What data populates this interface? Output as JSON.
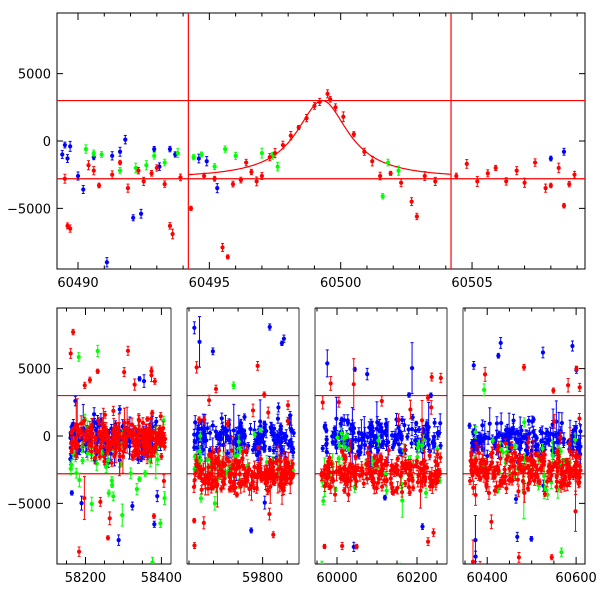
{
  "chart_data": [
    {
      "type": "scatter",
      "panel": "top",
      "title": "",
      "xlabel": "",
      "ylabel": "",
      "xlim": [
        60489.2,
        60509.3
      ],
      "ylim": [
        -9500,
        9500
      ],
      "x_ticks": [
        60490,
        60495,
        60500,
        60505
      ],
      "x_tick_labels": [
        "60490",
        "60495",
        "60500",
        "60505"
      ],
      "y_ticks": [
        -5000,
        0,
        5000
      ],
      "y_tick_labels": [
        "−5000",
        "0",
        "5000"
      ],
      "grid": false,
      "legend": "none",
      "reference_lines": {
        "horizontal": [
          3000,
          -2800
        ],
        "vertical": [
          60494.2,
          60504.2
        ],
        "color": "#ff0000"
      },
      "model_curve": {
        "shape": "lorentzian",
        "center": 60499.3,
        "peak": 3000,
        "baseline": -2800,
        "half_width": 1.2,
        "color": "#ff0000"
      },
      "series": [
        {
          "color": "#ff0000",
          "points": [
            [
              60489.5,
              -2800
            ],
            [
              60489.6,
              -6300
            ],
            [
              60489.7,
              -6500
            ],
            [
              60490.4,
              -1800
            ],
            [
              60490.6,
              -2200
            ],
            [
              60490.8,
              -3300
            ],
            [
              60491.3,
              -2500
            ],
            [
              60491.6,
              -1600
            ],
            [
              60491.9,
              -3500
            ],
            [
              60492.3,
              -2200
            ],
            [
              60492.5,
              -3000
            ],
            [
              60492.8,
              -2400
            ],
            [
              60493.0,
              -2000
            ],
            [
              60493.3,
              -3200
            ],
            [
              60493.5,
              -6300
            ],
            [
              60493.6,
              -6900
            ],
            [
              60493.9,
              -2700
            ],
            [
              60494.3,
              -5000
            ],
            [
              60494.8,
              -2600
            ],
            [
              60495.2,
              -2800
            ],
            [
              60495.5,
              -7900
            ],
            [
              60495.7,
              -8600
            ],
            [
              60495.9,
              -3200
            ],
            [
              60496.2,
              -2900
            ],
            [
              60496.4,
              -1600
            ],
            [
              60496.6,
              -2300
            ],
            [
              60496.8,
              -3000
            ],
            [
              60497.0,
              -2600
            ],
            [
              60497.3,
              -1200
            ],
            [
              60497.5,
              -900
            ],
            [
              60497.8,
              -300
            ],
            [
              60498.1,
              400
            ],
            [
              60498.4,
              1000
            ],
            [
              60498.7,
              1700
            ],
            [
              60499.0,
              2600
            ],
            [
              60499.2,
              2900
            ],
            [
              60499.5,
              3500
            ],
            [
              60499.6,
              3100
            ],
            [
              60499.8,
              2500
            ],
            [
              60500.1,
              1800
            ],
            [
              60500.5,
              500
            ],
            [
              60500.9,
              -800
            ],
            [
              60501.2,
              -1500
            ],
            [
              60501.5,
              -2600
            ],
            [
              60501.9,
              -2400
            ],
            [
              60502.3,
              -3100
            ],
            [
              60502.7,
              -4500
            ],
            [
              60502.9,
              -5600
            ],
            [
              60503.2,
              -2600
            ],
            [
              60503.6,
              -3000
            ],
            [
              60504.4,
              -2600
            ],
            [
              60504.8,
              -1700
            ],
            [
              60505.2,
              -3000
            ],
            [
              60505.6,
              -2400
            ],
            [
              60505.9,
              -2000
            ],
            [
              60506.3,
              -3000
            ],
            [
              60506.7,
              -2200
            ],
            [
              60507.0,
              -3100
            ],
            [
              60507.4,
              -1600
            ],
            [
              60507.8,
              -3500
            ],
            [
              60508.0,
              -3300
            ],
            [
              60508.3,
              -2000
            ],
            [
              60508.5,
              -4800
            ],
            [
              60508.7,
              -3200
            ],
            [
              60508.9,
              -2500
            ]
          ]
        },
        {
          "color": "#0000ff",
          "points": [
            [
              60489.4,
              -1000
            ],
            [
              60489.5,
              -300
            ],
            [
              60489.6,
              -1300
            ],
            [
              60489.7,
              -400
            ],
            [
              60490.0,
              -2600
            ],
            [
              60490.2,
              -3600
            ],
            [
              60490.6,
              -1200
            ],
            [
              60491.1,
              -9000
            ],
            [
              60491.3,
              -1100
            ],
            [
              60491.6,
              -800
            ],
            [
              60491.8,
              100
            ],
            [
              60492.1,
              -5700
            ],
            [
              60492.4,
              -5400
            ],
            [
              60492.9,
              -600
            ],
            [
              60493.1,
              -1900
            ],
            [
              60493.5,
              -600
            ],
            [
              60493.7,
              -1000
            ],
            [
              60494.6,
              -1300
            ],
            [
              60494.9,
              -1500
            ],
            [
              60495.3,
              -3500
            ],
            [
              60508.0,
              -1300
            ],
            [
              60508.5,
              -800
            ]
          ]
        },
        {
          "color": "#00ff00",
          "points": [
            [
              60490.3,
              -600
            ],
            [
              60490.6,
              -900
            ],
            [
              60490.9,
              -1000
            ],
            [
              60491.6,
              -2200
            ],
            [
              60492.2,
              -2000
            ],
            [
              60492.6,
              -1800
            ],
            [
              60492.9,
              -1100
            ],
            [
              60493.3,
              -1600
            ],
            [
              60493.8,
              -900
            ],
            [
              60494.4,
              -1200
            ],
            [
              60494.7,
              -1000
            ],
            [
              60495.2,
              -1900
            ],
            [
              60495.6,
              -600
            ],
            [
              60496.0,
              -1100
            ],
            [
              60497.0,
              -900
            ],
            [
              60497.4,
              -1100
            ],
            [
              60497.6,
              -1900
            ],
            [
              60501.6,
              -4100
            ],
            [
              60501.8,
              -1600
            ],
            [
              60502.2,
              -2200
            ]
          ]
        }
      ]
    },
    {
      "type": "scatter",
      "panel": "bottom",
      "title": "",
      "xlabel": "",
      "ylabel": "",
      "ylim": [
        -9500,
        9500
      ],
      "broken_axis": true,
      "x_segments": [
        {
          "xlim": [
            58125,
            58420
          ]
        },
        {
          "xlim": [
            59650,
            59870
          ]
        },
        {
          "xlim": [
            59950,
            60270
          ]
        },
        {
          "xlim": [
            60350,
            60620
          ]
        }
      ],
      "x_ticks": [
        58200,
        58400,
        59800,
        60000,
        60200,
        60400,
        60600
      ],
      "x_tick_labels": [
        "58200",
        "58400",
        "59800",
        "60000",
        "60200",
        "60400",
        "60600"
      ],
      "y_ticks": [
        -5000,
        0,
        5000
      ],
      "y_tick_labels": [
        "−5000",
        "0",
        "5000"
      ],
      "grid": false,
      "legend": "none",
      "reference_lines": {
        "horizontal": [
          3000,
          -2800
        ],
        "color": "#ff0000"
      },
      "series": [
        {
          "color": "#0000ff",
          "observing_seasons": [
            {
              "x_range": [
                58160,
                58410
              ],
              "center": -300,
              "spread": 1200
            },
            {
              "x_range": [
                59660,
                59865
              ],
              "center": -200,
              "spread": 1300
            },
            {
              "x_range": [
                59960,
                60260
              ],
              "center": -100,
              "spread": 1200
            },
            {
              "x_range": [
                60360,
                60610
              ],
              "center": -100,
              "spread": 1300
            }
          ]
        },
        {
          "color": "#00ff00",
          "observing_seasons": [
            {
              "x_range": [
                58160,
                58410
              ],
              "center": -2000,
              "spread": 2200
            },
            {
              "x_range": [
                59660,
                59865
              ],
              "center": -2000,
              "spread": 2200
            },
            {
              "x_range": [
                59960,
                60260
              ],
              "center": -2000,
              "spread": 2200
            },
            {
              "x_range": [
                60360,
                60610
              ],
              "center": -2000,
              "spread": 2200
            }
          ]
        },
        {
          "color": "#ff0000",
          "observing_seasons": [
            {
              "x_range": [
                58160,
                58410
              ],
              "center": -200,
              "spread": 1400
            },
            {
              "x_range": [
                59660,
                59865
              ],
              "center": -2800,
              "spread": 1300
            },
            {
              "x_range": [
                59960,
                60260
              ],
              "center": -2700,
              "spread": 1300
            },
            {
              "x_range": [
                60360,
                60610
              ],
              "center": -2500,
              "spread": 1400
            }
          ]
        }
      ]
    }
  ]
}
